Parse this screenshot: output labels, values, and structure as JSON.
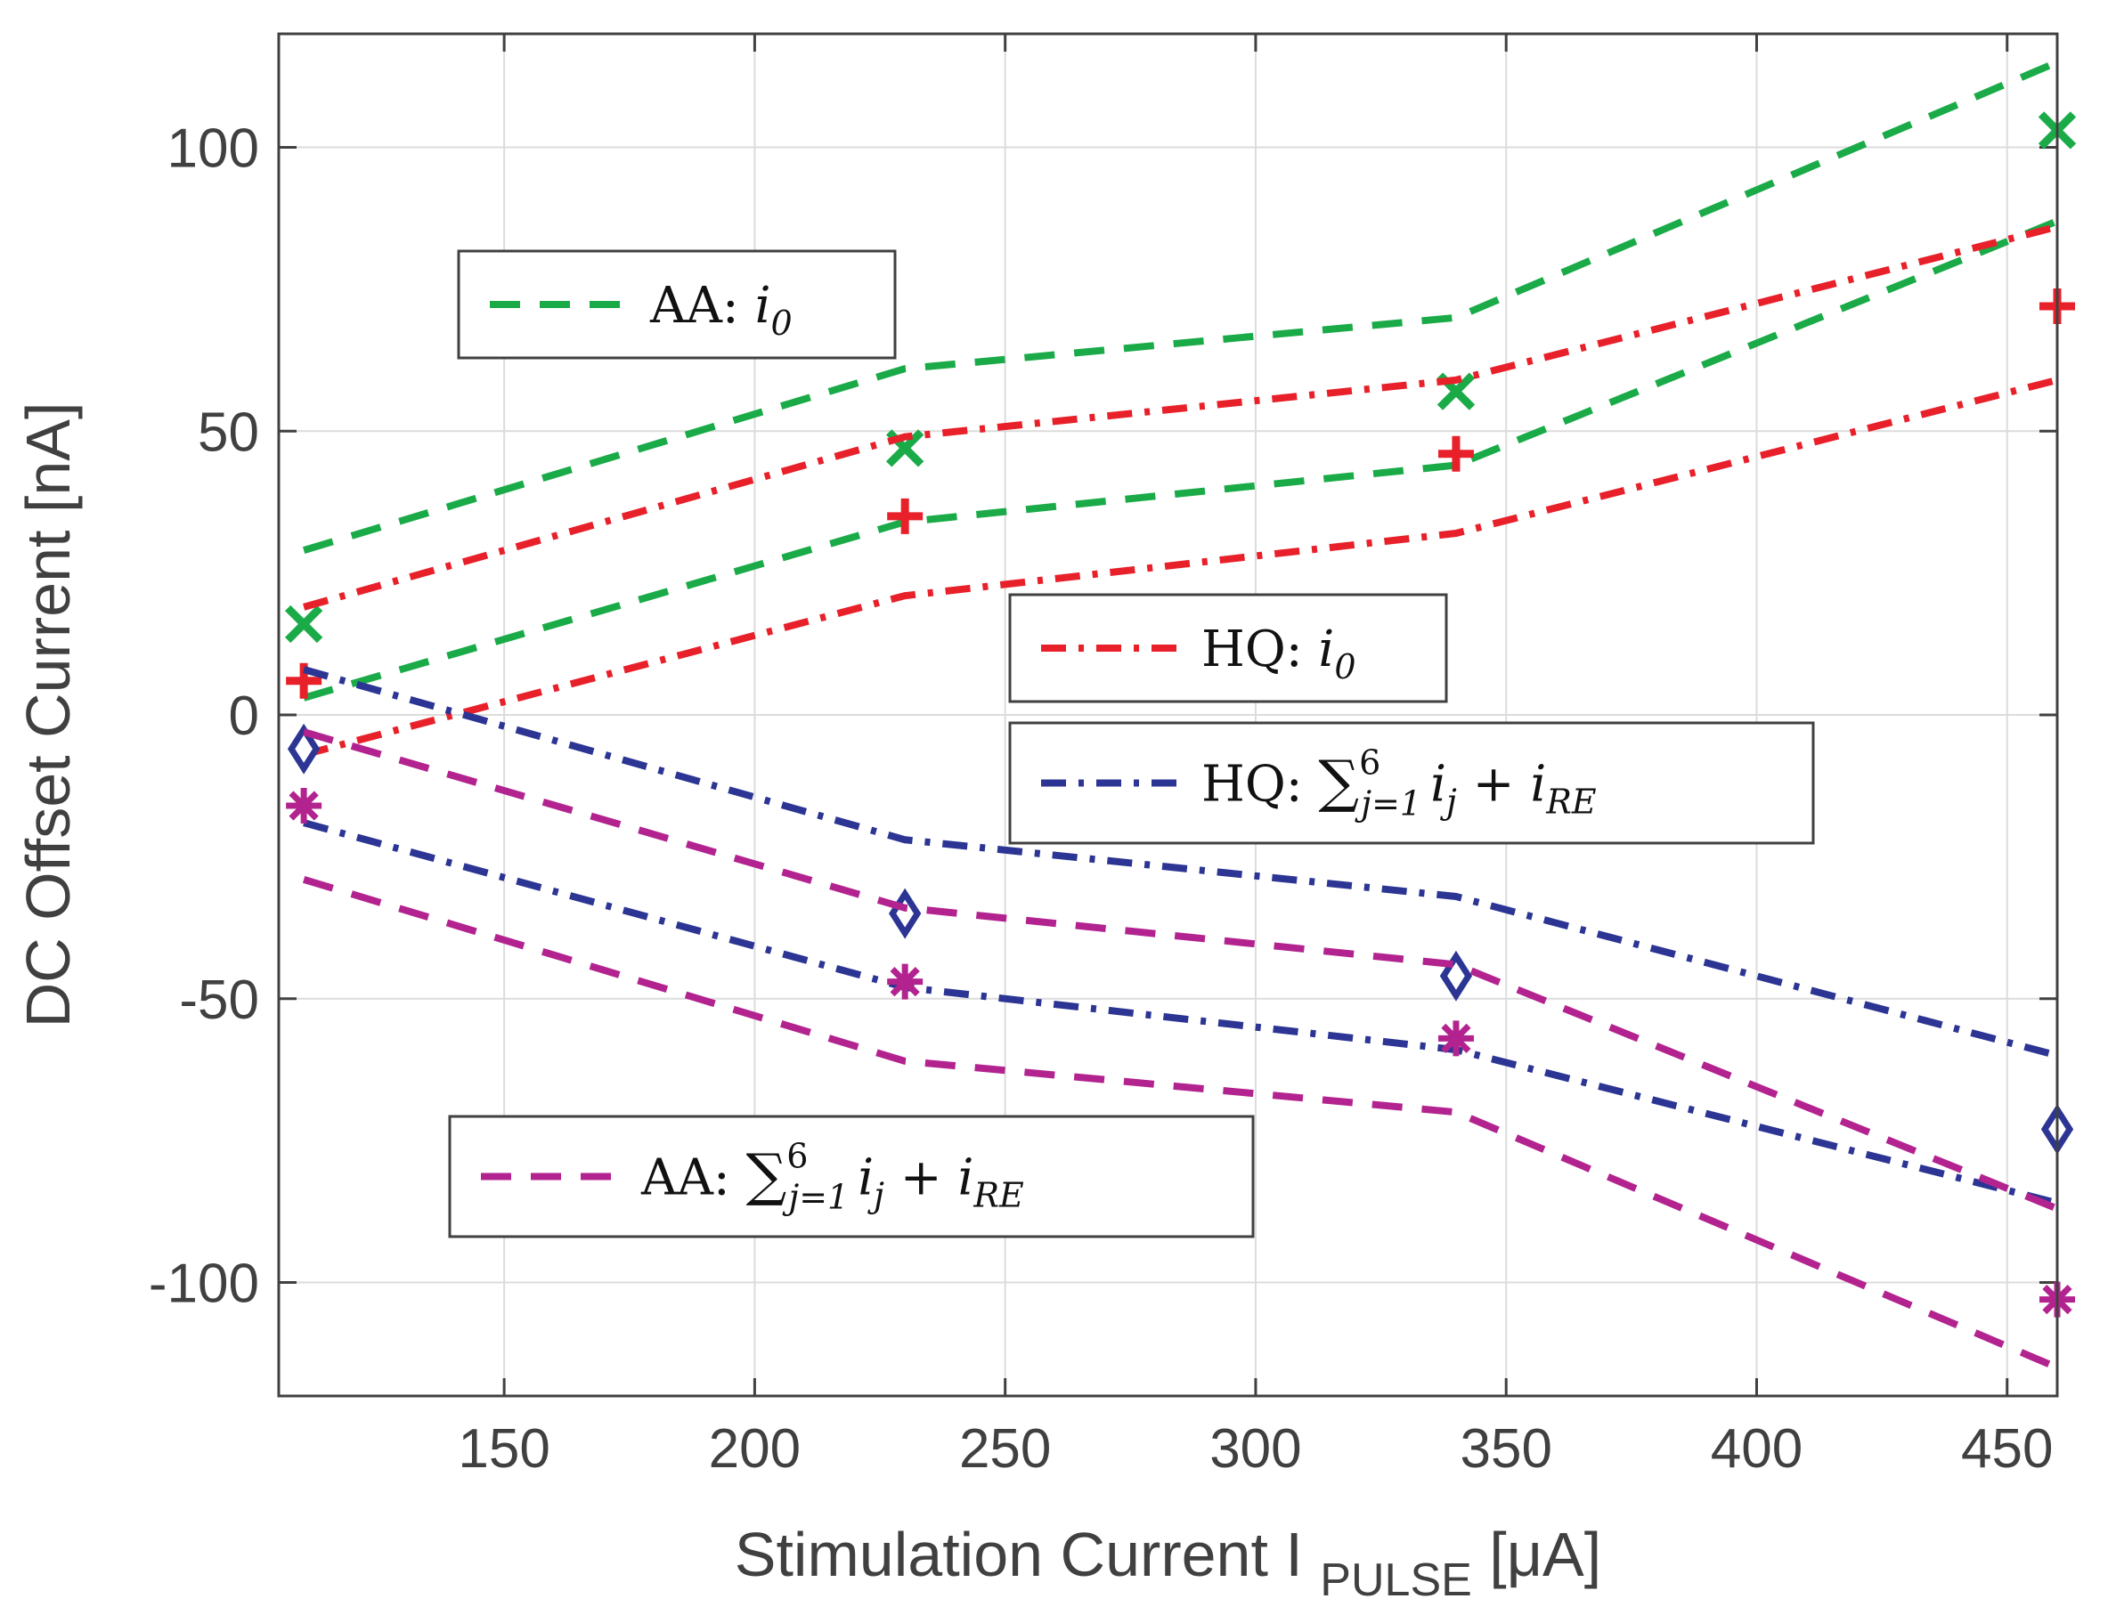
{
  "chart_data": {
    "type": "line",
    "title": "",
    "xlabel_main": "Stimulation Current I",
    "xlabel_sub": "PULSE",
    "xlabel_unit": "[μA]",
    "ylabel": "DC Offset Current [nA]",
    "xlim": [
      105,
      460
    ],
    "ylim": [
      -120,
      120
    ],
    "xticks": [
      150,
      200,
      250,
      300,
      350,
      400,
      450
    ],
    "yticks": [
      -100,
      -50,
      0,
      50,
      100
    ],
    "grid": true,
    "x": [
      110,
      230,
      340,
      460
    ],
    "series": [
      {
        "name": "AA: i0",
        "color": "#1aab48",
        "marker": "x",
        "values": [
          16,
          47,
          57,
          103
        ],
        "upper": [
          29,
          61,
          70,
          115
        ],
        "lower": [
          3,
          34,
          44,
          87
        ]
      },
      {
        "name": "HQ: i0",
        "color": "#e8202a",
        "marker": "+",
        "values": [
          6,
          35,
          46,
          72
        ],
        "upper": [
          19,
          49,
          59,
          86
        ],
        "lower": [
          -7,
          21,
          32,
          59
        ]
      },
      {
        "name": "HQ: sum_{j=1}^{6} i_j + i_RE",
        "color": "#2c3593",
        "marker": "diamond",
        "values": [
          -6,
          -35,
          -46,
          -73
        ],
        "upper": [
          8,
          -22,
          -32,
          -60
        ],
        "lower": [
          -19,
          -48,
          -59,
          -86
        ]
      },
      {
        "name": "AA: sum_{j=1}^{6} i_j + i_RE",
        "color": "#b3238f",
        "marker": "asterisk",
        "values": [
          -16,
          -47,
          -57,
          -103
        ],
        "upper": [
          -3,
          -34,
          -44,
          -87
        ],
        "lower": [
          -29,
          -61,
          -70,
          -115
        ]
      }
    ],
    "legend": [
      {
        "prefix": "AA: ",
        "color": "#1aab48",
        "kind": "i0"
      },
      {
        "prefix": "HQ: ",
        "color": "#e8202a",
        "kind": "i0"
      },
      {
        "prefix": "HQ: ",
        "color": "#2c3593",
        "kind": "sum"
      },
      {
        "prefix": "AA: ",
        "color": "#b3238f",
        "kind": "sum"
      }
    ]
  }
}
